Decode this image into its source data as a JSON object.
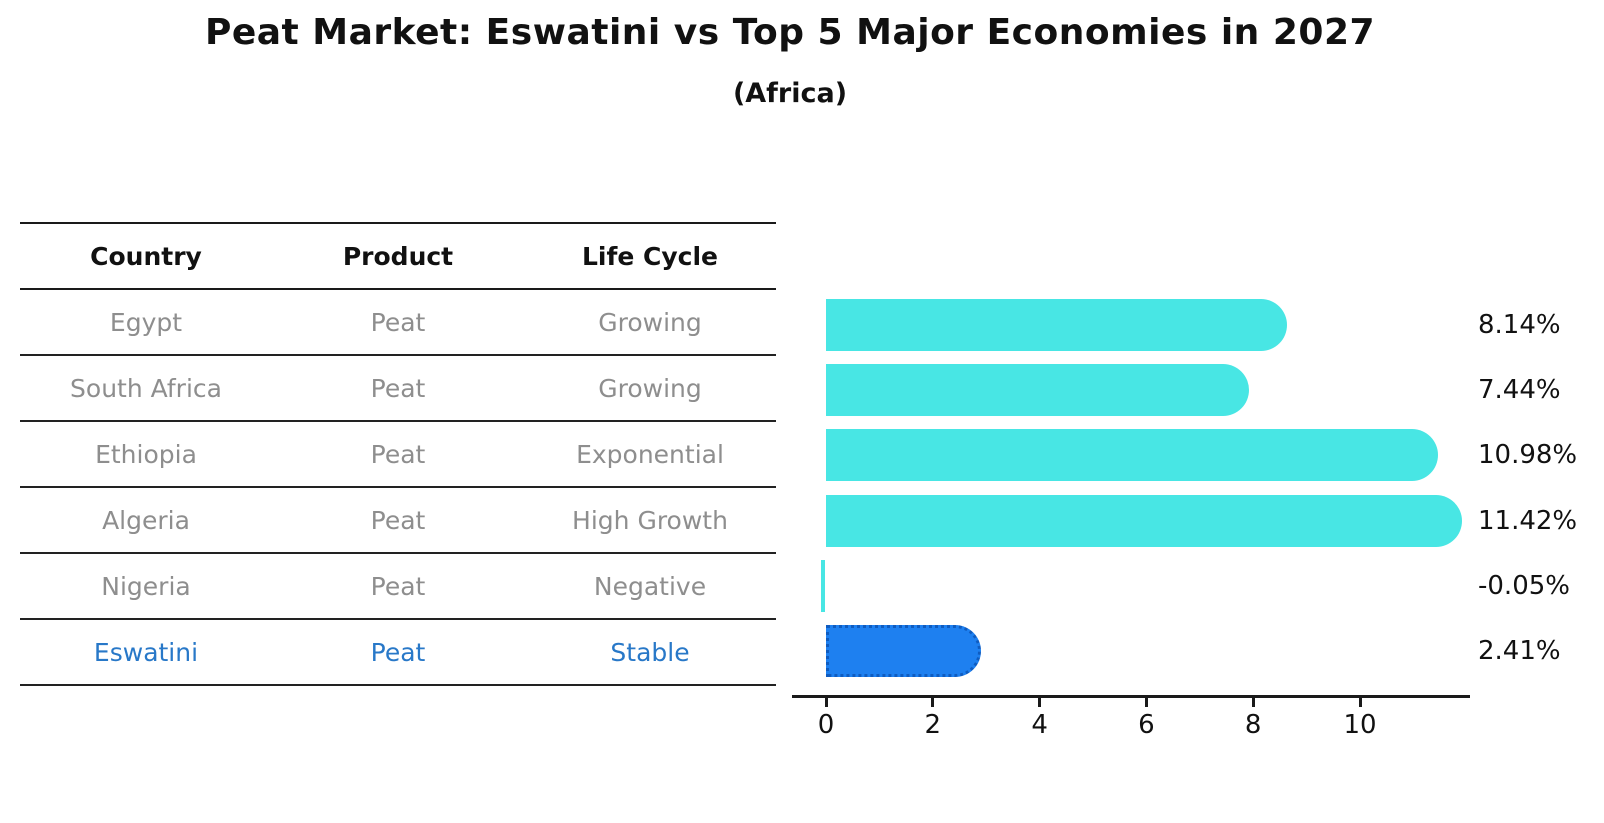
{
  "chart_data": {
    "type": "bar",
    "orientation": "horizontal",
    "title": "Peat Market: Eswatini vs Top 5 Major Economies in 2027",
    "subtitle": "(Africa)",
    "categories": [
      "Egypt",
      "South Africa",
      "Ethiopia",
      "Algeria",
      "Nigeria",
      "Eswatini"
    ],
    "values": [
      8.14,
      7.44,
      10.98,
      11.42,
      -0.05,
      2.41
    ],
    "value_labels": [
      "8.14%",
      "7.44%",
      "10.98%",
      "11.42%",
      "-0.05%",
      "2.41%"
    ],
    "xticks": [
      0,
      2,
      4,
      6,
      8,
      10
    ],
    "xtick_labels": [
      "0",
      "2",
      "4",
      "6",
      "8",
      "10"
    ],
    "xlim": [
      -0.6,
      12.1
    ],
    "grid": false,
    "legend": "none",
    "bar_color": "#48e6e4",
    "highlight_color": "#1e80f0",
    "highlight_border_color": "#0f5cc0",
    "highlight_index": 5
  },
  "table": {
    "headers": [
      "Country",
      "Product",
      "Life Cycle"
    ],
    "rows": [
      {
        "country": "Egypt",
        "product": "Peat",
        "life_cycle": "Growing",
        "highlight": false
      },
      {
        "country": "South Africa",
        "product": "Peat",
        "life_cycle": "Growing",
        "highlight": false
      },
      {
        "country": "Ethiopia",
        "product": "Peat",
        "life_cycle": "Exponential",
        "highlight": false
      },
      {
        "country": "Algeria",
        "product": "Peat",
        "life_cycle": "High Growth",
        "highlight": false
      },
      {
        "country": "Nigeria",
        "product": "Peat",
        "life_cycle": "Negative",
        "highlight": false
      },
      {
        "country": "Eswatini",
        "product": "Peat",
        "life_cycle": "Stable",
        "highlight": true
      }
    ],
    "text_color": "#8e8e8e",
    "highlight_text_color": "#2878c8"
  }
}
